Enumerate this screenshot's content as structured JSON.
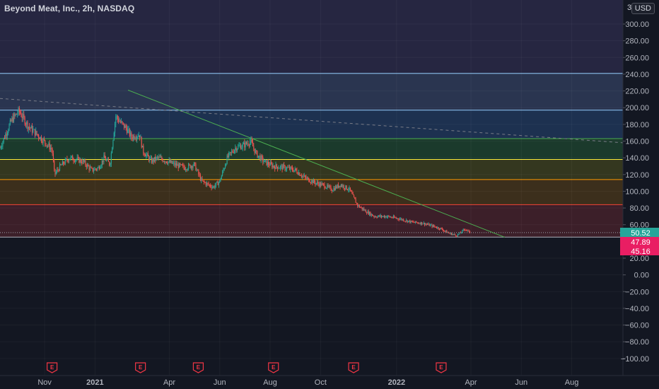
{
  "header": {
    "title": "Beyond Meat, Inc., 2h, NASDAQ",
    "currency": "USD",
    "axis_clip": "3"
  },
  "chart_data": {
    "type": "candlestick",
    "symbol": "Beyond Meat, Inc.",
    "interval": "2h",
    "exchange": "NASDAQ",
    "currency": "USD",
    "ylim": [
      -100,
      300
    ],
    "y_ticks": [
      300,
      280,
      260,
      240,
      220,
      200,
      180,
      160,
      140,
      120,
      100,
      80,
      60,
      20,
      0,
      -20,
      -40,
      -60,
      -80,
      -100
    ],
    "y_tick_labels": [
      "300.00",
      "280.00",
      "260.00",
      "240.00",
      "220.00",
      "200.00",
      "180.00",
      "160.00",
      "140.00",
      "120.00",
      "100.00",
      "80.00",
      "60.00",
      "20.00",
      "0.00",
      "−20.00",
      "−40.00",
      "−60.00",
      "−80.00",
      "−100.00"
    ],
    "x_labels": [
      "Nov",
      "2021",
      "Apr",
      "Jun",
      "Aug",
      "Oct",
      "2022",
      "Apr",
      "Jun",
      "Aug"
    ],
    "x_label_dates": [
      "2020-11-01",
      "2021-01-01",
      "2021-04-01",
      "2021-06-01",
      "2021-08-01",
      "2021-10-01",
      "2022-01-01",
      "2022-04-01",
      "2022-06-01",
      "2022-08-01"
    ],
    "x_range": [
      "2020-09-08",
      "2022-10-02"
    ],
    "price_labels": [
      {
        "value": 50.52,
        "text": "50.52",
        "color": "#26a69a"
      },
      {
        "value": 47.89,
        "text": "47.89",
        "color": "#e91e63"
      },
      {
        "value": 45.16,
        "text": "45.16",
        "color": "#e91e63"
      }
    ],
    "bands": [
      {
        "from": 197,
        "to": 241,
        "fill": "#2a3550",
        "line": "#90caf9"
      },
      {
        "from": 163,
        "to": 197,
        "fill": "#1d3150",
        "line": "#90caf9"
      },
      {
        "from": 138,
        "to": 163,
        "fill": "#1b3a2c",
        "line": "#4caf50"
      },
      {
        "from": 114,
        "to": 138,
        "fill": "#34371f",
        "line": "#ffeb3b"
      },
      {
        "from": 84,
        "to": 114,
        "fill": "#3c2f1c",
        "line": "#ff9800"
      },
      {
        "from": 45.16,
        "to": 84,
        "fill": "#3c1f29",
        "line": "#f44336"
      }
    ],
    "upper_bg": {
      "from": 241,
      "to": 305,
      "fill": "#262641"
    },
    "trendline": {
      "color": "#4caf50",
      "points": [
        [
          "2021-02-10",
          221
        ],
        [
          "2022-05-12",
          45
        ]
      ]
    },
    "dashed_trendline": {
      "color": "#787b86",
      "points": [
        [
          "2020-09-08",
          211
        ],
        [
          "2022-10-02",
          158
        ]
      ]
    },
    "earnings_dates": [
      "2020-11-10",
      "2021-02-25",
      "2021-05-06",
      "2021-08-05",
      "2021-11-10",
      "2022-02-24"
    ],
    "earnings_marker": "E",
    "close_series": [
      [
        "2020-09-08",
        152
      ],
      [
        "2020-09-22",
        185
      ],
      [
        "2020-10-01",
        196
      ],
      [
        "2020-10-12",
        178
      ],
      [
        "2020-10-26",
        165
      ],
      [
        "2020-11-10",
        150
      ],
      [
        "2020-11-13",
        120
      ],
      [
        "2020-11-20",
        130
      ],
      [
        "2020-12-01",
        140
      ],
      [
        "2020-12-10",
        138
      ],
      [
        "2020-12-18",
        135
      ],
      [
        "2020-12-28",
        125
      ],
      [
        "2021-01-05",
        128
      ],
      [
        "2021-01-12",
        140
      ],
      [
        "2021-01-19",
        132
      ],
      [
        "2021-01-26",
        190
      ],
      [
        "2021-02-01",
        182
      ],
      [
        "2021-02-08",
        175
      ],
      [
        "2021-02-14",
        165
      ],
      [
        "2021-02-24",
        168
      ],
      [
        "2021-02-28",
        148
      ],
      [
        "2021-03-10",
        136
      ],
      [
        "2021-03-18",
        140
      ],
      [
        "2021-03-29",
        136
      ],
      [
        "2021-04-07",
        132
      ],
      [
        "2021-04-20",
        128
      ],
      [
        "2021-05-01",
        132
      ],
      [
        "2021-05-10",
        112
      ],
      [
        "2021-05-24",
        105
      ],
      [
        "2021-06-01",
        112
      ],
      [
        "2021-06-10",
        140
      ],
      [
        "2021-06-20",
        152
      ],
      [
        "2021-06-30",
        155
      ],
      [
        "2021-07-08",
        160
      ],
      [
        "2021-07-15",
        145
      ],
      [
        "2021-07-25",
        135
      ],
      [
        "2021-08-05",
        130
      ],
      [
        "2021-08-20",
        128
      ],
      [
        "2021-09-01",
        125
      ],
      [
        "2021-09-12",
        116
      ],
      [
        "2021-09-25",
        110
      ],
      [
        "2021-10-05",
        107
      ],
      [
        "2021-10-15",
        102
      ],
      [
        "2021-10-25",
        108
      ],
      [
        "2021-11-05",
        102
      ],
      [
        "2021-11-10",
        92
      ],
      [
        "2021-11-15",
        83
      ],
      [
        "2021-11-25",
        76
      ],
      [
        "2021-12-05",
        70
      ],
      [
        "2021-12-20",
        70
      ],
      [
        "2022-01-05",
        67
      ],
      [
        "2022-01-20",
        63
      ],
      [
        "2022-02-01",
        62
      ],
      [
        "2022-02-15",
        58
      ],
      [
        "2022-02-24",
        55
      ],
      [
        "2022-03-05",
        50
      ],
      [
        "2022-03-15",
        47
      ],
      [
        "2022-03-25",
        55
      ],
      [
        "2022-03-31",
        50.52
      ]
    ]
  }
}
